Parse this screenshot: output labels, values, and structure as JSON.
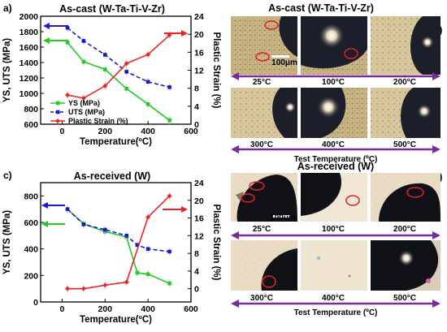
{
  "panels": {
    "a": {
      "label": "a)",
      "title": "As-cast (W-Ta-Ti-V-Zr)"
    },
    "b": {
      "label": "b)",
      "title": "As-cast (W-Ta-Ti-V-Zr)",
      "scale_bar": "100μm",
      "tiles": [
        "25°C",
        "100°C",
        "200°C",
        "300°C",
        "400°C",
        "500°C"
      ],
      "axis_caption": "Test Temperature (ºC)"
    },
    "c": {
      "label": "c)",
      "title": "As-received (W)"
    },
    "d": {
      "label": "d)",
      "title": "As-received (W)",
      "scale_bar": "100μm",
      "tiles": [
        "25°C",
        "100°C",
        "200°C",
        "300°C",
        "400°C",
        "500°C"
      ],
      "axis_caption": "Test Temperature (ºC)"
    }
  },
  "colors": {
    "ys": "#22cc22",
    "uts": "#1a1acc",
    "strain": "#ee2222",
    "arrow_purple": "#7a2a9a",
    "circle": "#e0202a"
  },
  "chart_data": [
    {
      "type": "line",
      "title": "As-cast (W-Ta-Ti-V-Zr)",
      "xlabel": "Temperature(ºC)",
      "ylabel": "YS, UTS (MPa)",
      "y2label": "Plastic Strain (%)",
      "xlim": [
        -100,
        600
      ],
      "ylim": [
        600,
        2000
      ],
      "y2lim": [
        0,
        24
      ],
      "xticks": [
        0,
        200,
        400,
        600
      ],
      "yticks": [
        600,
        800,
        1000,
        1200,
        1400,
        1600,
        1800,
        2000
      ],
      "y2ticks": [
        0,
        4,
        8,
        12,
        16,
        20,
        24
      ],
      "series": [
        {
          "name": "YS (MPa)",
          "axis": "left",
          "style": "solid-square",
          "x": [
            25,
            100,
            200,
            300,
            400,
            500
          ],
          "y": [
            1660,
            1410,
            1310,
            1060,
            860,
            650
          ]
        },
        {
          "name": "UTS (MPa)",
          "axis": "left",
          "style": "dashed-square",
          "x": [
            25,
            100,
            200,
            300,
            400,
            500
          ],
          "y": [
            1850,
            1680,
            1500,
            1280,
            1150,
            1080
          ]
        },
        {
          "name": "Plastic Strain (%)",
          "axis": "right",
          "style": "solid-diamond",
          "x": [
            25,
            100,
            200,
            300,
            400,
            500
          ],
          "y": [
            6.5,
            5.8,
            8.5,
            13.5,
            15.5,
            19.8
          ]
        }
      ],
      "legend": "lower-left"
    },
    {
      "type": "line",
      "title": "As-received (W)",
      "xlabel": "Temperature(ºC)",
      "ylabel": "YS, UTS (MPa)",
      "y2label": "Plastic Strain (%)",
      "xlim": [
        -100,
        600
      ],
      "ylim": [
        0,
        900
      ],
      "y2lim": [
        -3,
        24
      ],
      "xticks": [
        0,
        200,
        400,
        600
      ],
      "yticks": [
        0,
        200,
        400,
        600,
        800
      ],
      "y2ticks": [
        0,
        4,
        8,
        12,
        16,
        20,
        24
      ],
      "series": [
        {
          "name": "YS (MPa)",
          "axis": "left",
          "style": "solid-square",
          "x": [
            25,
            100,
            200,
            300,
            350,
            400,
            500
          ],
          "y": [
            700,
            590,
            530,
            490,
            220,
            210,
            140
          ]
        },
        {
          "name": "UTS (MPa)",
          "axis": "left",
          "style": "dashed-square",
          "x": [
            25,
            100,
            200,
            300,
            350,
            400,
            500
          ],
          "y": [
            700,
            585,
            545,
            500,
            430,
            400,
            380
          ]
        },
        {
          "name": "Plastic Strain (%)",
          "axis": "right",
          "style": "solid-diamond",
          "x": [
            25,
            100,
            200,
            300,
            400,
            500
          ],
          "y": [
            0,
            0,
            0.8,
            1.5,
            16.2,
            21
          ]
        }
      ]
    }
  ]
}
